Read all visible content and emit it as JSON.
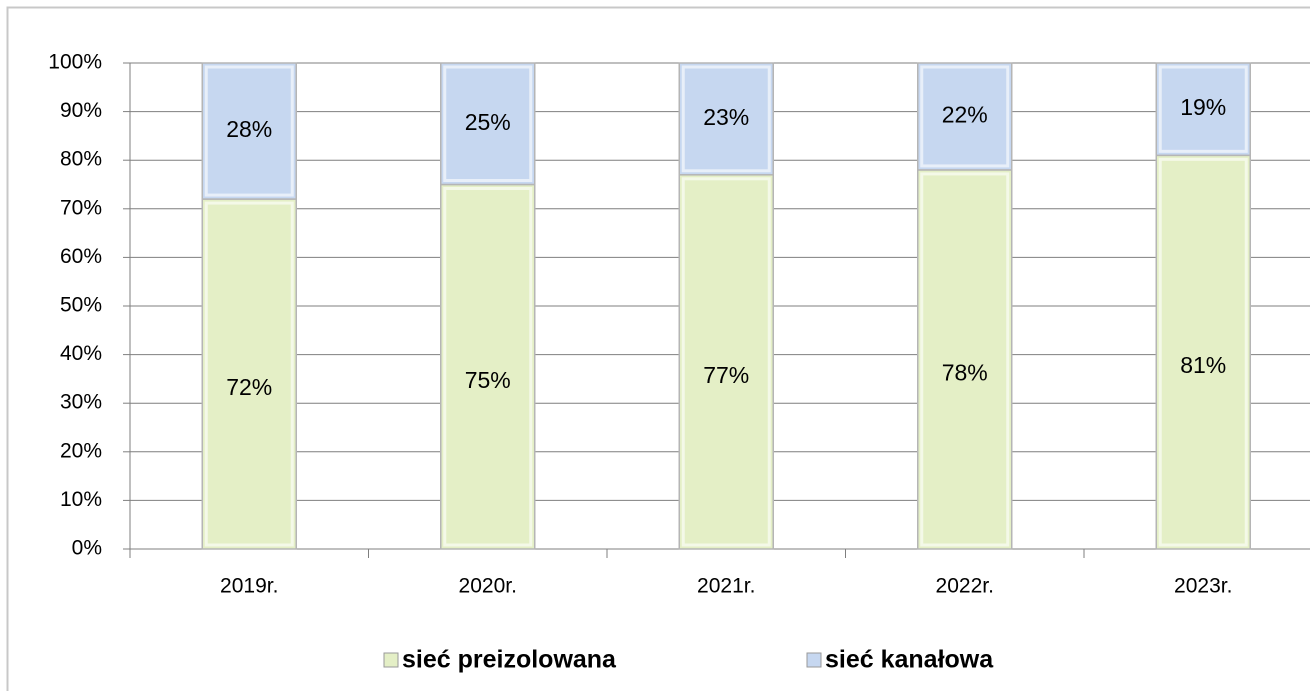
{
  "chart_data": {
    "type": "stacked_bar",
    "categories": [
      "2019r.",
      "2020r.",
      "2021r.",
      "2022r.",
      "2023r."
    ],
    "series": [
      {
        "name": "sieć preizolowana",
        "color": "#e4efc6",
        "values": [
          72,
          75,
          77,
          78,
          81
        ],
        "value_labels": [
          "72%",
          "75%",
          "77%",
          "78%",
          "81%"
        ]
      },
      {
        "name": "sieć kanałowa",
        "color": "#c6d7f0",
        "values": [
          28,
          25,
          23,
          22,
          19
        ],
        "value_labels": [
          "28%",
          "25%",
          "23%",
          "22%",
          "19%"
        ]
      }
    ],
    "ylim": [
      0,
      100
    ],
    "yticks": [
      {
        "value": 0,
        "label": "0%"
      },
      {
        "value": 10,
        "label": "10%"
      },
      {
        "value": 20,
        "label": "20%"
      },
      {
        "value": 30,
        "label": "30%"
      },
      {
        "value": 40,
        "label": "40%"
      },
      {
        "value": 50,
        "label": "50%"
      },
      {
        "value": 60,
        "label": "60%"
      },
      {
        "value": 70,
        "label": "70%"
      },
      {
        "value": 80,
        "label": "80%"
      },
      {
        "value": 90,
        "label": "90%"
      },
      {
        "value": 100,
        "label": "100%"
      }
    ],
    "grid": true,
    "legend": "bottom"
  }
}
